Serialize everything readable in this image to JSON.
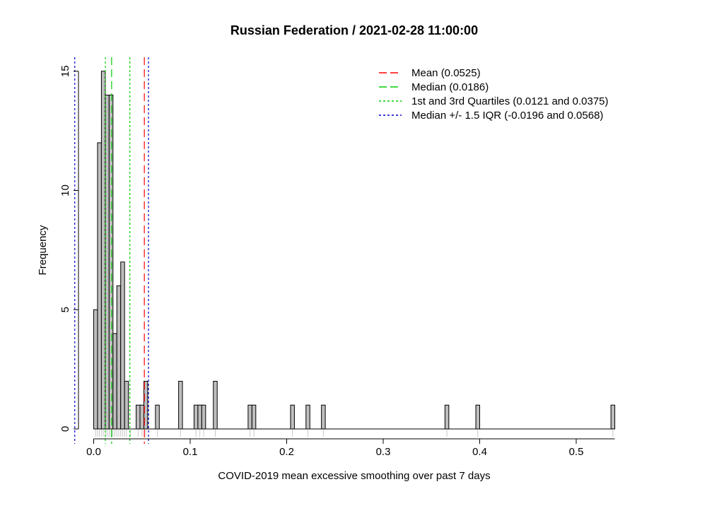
{
  "chart_data": {
    "type": "histogram",
    "title": "Russian Federation / 2021-02-28 11:00:00",
    "xlabel": "COVID-2019 mean excessive smoothing over past 7 days",
    "ylabel": "Frequency",
    "xlim": [
      -0.02,
      0.54
    ],
    "ylim": [
      0,
      15
    ],
    "bin_width": 0.004,
    "x_ticks": [
      {
        "value": 0.0,
        "label": "0.0"
      },
      {
        "value": 0.1,
        "label": "0.1"
      },
      {
        "value": 0.2,
        "label": "0.2"
      },
      {
        "value": 0.3,
        "label": "0.3"
      },
      {
        "value": 0.4,
        "label": "0.4"
      },
      {
        "value": 0.5,
        "label": "0.5"
      }
    ],
    "y_ticks": [
      {
        "value": 0,
        "label": "0"
      },
      {
        "value": 5,
        "label": "5"
      },
      {
        "value": 10,
        "label": "10"
      },
      {
        "value": 15,
        "label": "15"
      }
    ],
    "bins": [
      {
        "start": 0.0,
        "end": 0.004,
        "count": 5
      },
      {
        "start": 0.004,
        "end": 0.008,
        "count": 12
      },
      {
        "start": 0.008,
        "end": 0.012,
        "count": 15
      },
      {
        "start": 0.012,
        "end": 0.016,
        "count": 14
      },
      {
        "start": 0.016,
        "end": 0.02,
        "count": 14
      },
      {
        "start": 0.02,
        "end": 0.024,
        "count": 4
      },
      {
        "start": 0.024,
        "end": 0.028,
        "count": 6
      },
      {
        "start": 0.028,
        "end": 0.032,
        "count": 7
      },
      {
        "start": 0.032,
        "end": 0.036,
        "count": 2
      },
      {
        "start": 0.044,
        "end": 0.048,
        "count": 1
      },
      {
        "start": 0.048,
        "end": 0.052,
        "count": 1
      },
      {
        "start": 0.052,
        "end": 0.056,
        "count": 2
      },
      {
        "start": 0.064,
        "end": 0.068,
        "count": 1
      },
      {
        "start": 0.088,
        "end": 0.092,
        "count": 2
      },
      {
        "start": 0.104,
        "end": 0.108,
        "count": 1
      },
      {
        "start": 0.108,
        "end": 0.112,
        "count": 1
      },
      {
        "start": 0.112,
        "end": 0.116,
        "count": 1
      },
      {
        "start": 0.124,
        "end": 0.128,
        "count": 2
      },
      {
        "start": 0.16,
        "end": 0.164,
        "count": 1
      },
      {
        "start": 0.164,
        "end": 0.168,
        "count": 1
      },
      {
        "start": 0.204,
        "end": 0.208,
        "count": 1
      },
      {
        "start": 0.22,
        "end": 0.224,
        "count": 1
      },
      {
        "start": 0.236,
        "end": 0.24,
        "count": 1
      },
      {
        "start": 0.364,
        "end": 0.368,
        "count": 1
      },
      {
        "start": 0.396,
        "end": 0.4,
        "count": 1
      },
      {
        "start": 0.536,
        "end": 0.54,
        "count": 1
      }
    ],
    "rug": [
      0.002,
      0.004,
      0.006,
      0.008,
      0.01,
      0.012,
      0.014,
      0.016,
      0.018,
      0.02,
      0.022,
      0.024,
      0.026,
      0.028,
      0.03,
      0.032,
      0.034,
      0.038,
      0.046,
      0.05,
      0.054,
      0.066,
      0.09,
      0.106,
      0.11,
      0.114,
      0.126,
      0.162,
      0.166,
      0.206,
      0.222,
      0.238,
      0.366,
      0.398,
      0.538
    ],
    "reference_lines": [
      {
        "name": "mean",
        "value": 0.0525,
        "color": "#ff0000",
        "style": "dashed"
      },
      {
        "name": "median",
        "value": 0.0186,
        "color": "#00cc00",
        "style": "dashed"
      },
      {
        "name": "q1",
        "value": 0.0121,
        "color": "#00cc00",
        "style": "dotted"
      },
      {
        "name": "q3",
        "value": 0.0375,
        "color": "#00cc00",
        "style": "dotted"
      },
      {
        "name": "iqr-low",
        "value": -0.0196,
        "color": "#0000cc",
        "style": "dotted"
      },
      {
        "name": "iqr-high",
        "value": 0.0568,
        "color": "#0000cc",
        "style": "dotted"
      }
    ],
    "legend": {
      "position": "top-right",
      "entries": [
        {
          "label": "Mean (0.0525)",
          "color": "#ff0000",
          "style": "dashed"
        },
        {
          "label": "Median (0.0186)",
          "color": "#00cc00",
          "style": "dashed"
        },
        {
          "label": "1st and 3rd Quartiles (0.0121 and 0.0375)",
          "color": "#00cc00",
          "style": "dotted"
        },
        {
          "label": "Median +/- 1.5 IQR (-0.0196 and 0.0568)",
          "color": "#0000cc",
          "style": "dotted"
        }
      ]
    },
    "colors": {
      "bar_fill": "#bebebe",
      "bar_stroke": "#000000",
      "rug": "#c8c8c8"
    }
  }
}
